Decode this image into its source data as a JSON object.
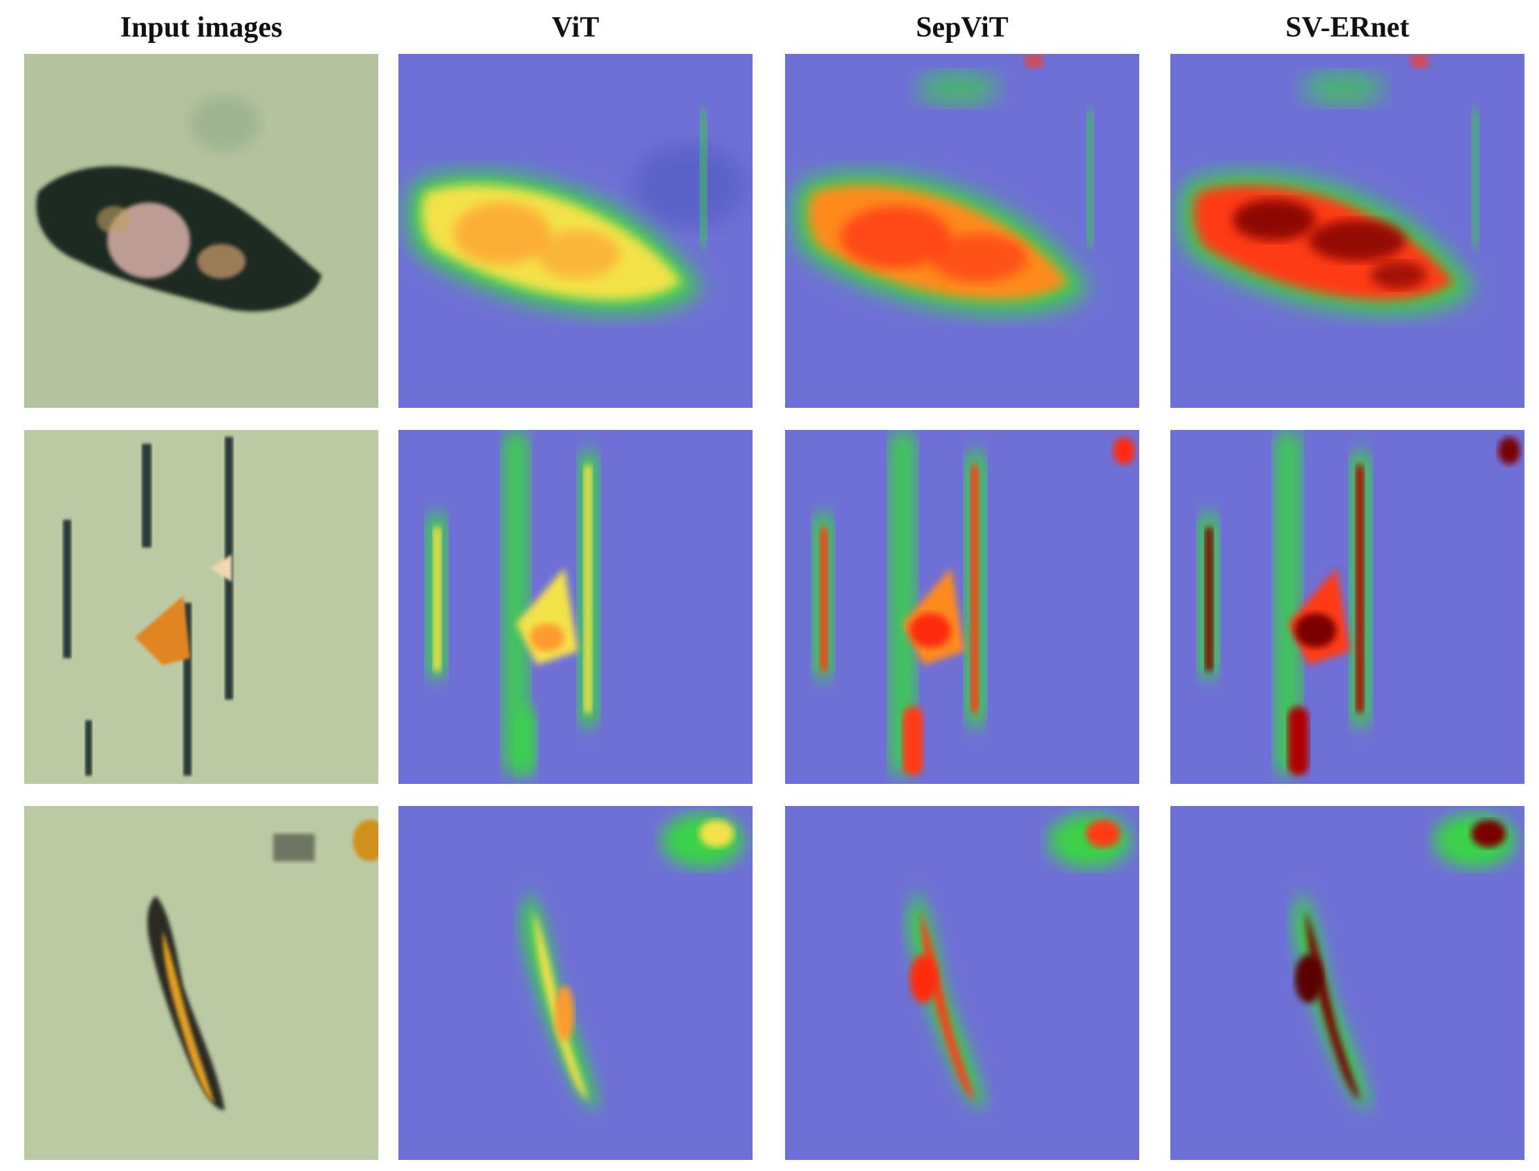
{
  "figure": {
    "columns": [
      {
        "label": "Input images"
      },
      {
        "label": "ViT"
      },
      {
        "label": "SepViT"
      },
      {
        "label": "SV-ERnet"
      }
    ],
    "rows": 3,
    "colors": {
      "background_blue": "#6f6fd8",
      "heat_green": "#3ad24a",
      "heat_yellow": "#f4e24a",
      "heat_orange": "#ff8a1e",
      "heat_red": "#ff2a10",
      "heat_dark": "#7a0000",
      "input_bg": "#b9c8a2"
    }
  }
}
